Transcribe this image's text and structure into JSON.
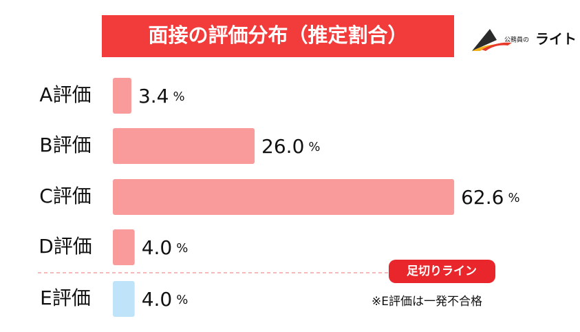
{
  "chart_data": {
    "type": "bar",
    "orientation": "horizontal",
    "title": "面接の評価分布（推定割合）",
    "categories": [
      "A評価",
      "B評価",
      "C評価",
      "D評価",
      "E評価"
    ],
    "values": [
      3.4,
      26.0,
      62.6,
      4.0,
      4.0
    ],
    "value_labels": [
      "3.4",
      "26.0",
      "62.6",
      "4.0",
      "4.0"
    ],
    "unit": "%",
    "colors": [
      "#f99b9b",
      "#f99b9b",
      "#f99b9b",
      "#f99b9b",
      "#bfe3f8"
    ],
    "xlim": [
      0,
      80
    ],
    "annotations": [
      "足切りライン",
      "※E評価は一発不合格"
    ]
  },
  "logo": {
    "small": "公務員の",
    "large": "ライト"
  }
}
